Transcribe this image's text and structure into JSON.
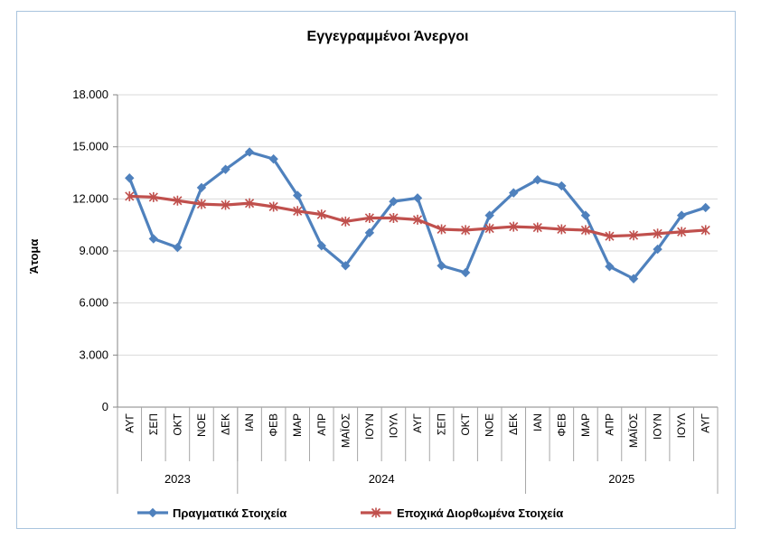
{
  "chart_data": {
    "type": "line",
    "title": "Εγγεγραμμένοι Άνεργοι",
    "xlabel": "",
    "ylabel": "Άτομα",
    "ylim": [
      0,
      18000
    ],
    "yticks": [
      0,
      3000,
      6000,
      9000,
      12000,
      15000,
      18000
    ],
    "ytick_labels": [
      "0",
      "3.000",
      "6.000",
      "9.000",
      "12.000",
      "15.000",
      "18.000"
    ],
    "grid": true,
    "legend_position": "bottom",
    "categories": [
      "ΑΥΓ",
      "ΣΕΠ",
      "ΟΚΤ",
      "ΝΟΕ",
      "ΔΕΚ",
      "ΙΑΝ",
      "ΦΕΒ",
      "ΜΑΡ",
      "ΑΠΡ",
      "ΜΑΪΟΣ",
      "ΙΟΥΝ",
      "ΙΟΥΛ",
      "ΑΥΓ",
      "ΣΕΠ",
      "ΟΚΤ",
      "ΝΟΕ",
      "ΔΕΚ",
      "ΙΑΝ",
      "ΦΕΒ",
      "ΜΑΡ",
      "ΑΠΡ",
      "ΜΑΪΟΣ",
      "ΙΟΥΝ",
      "ΙΟΥΛ",
      "ΑΥΓ"
    ],
    "year_groups": [
      {
        "label": "2023",
        "start": 0,
        "end": 4
      },
      {
        "label": "2024",
        "start": 5,
        "end": 16
      },
      {
        "label": "2025",
        "start": 17,
        "end": 24
      }
    ],
    "series": [
      {
        "name": "Πραγματικά Στοιχεία",
        "color": "#4f81bd",
        "marker": "diamond",
        "values": [
          13200,
          9700,
          9200,
          12650,
          13700,
          14700,
          14300,
          12200,
          9300,
          8150,
          10050,
          11850,
          12050,
          8150,
          7750,
          11050,
          12350,
          13100,
          12750,
          11050,
          8100,
          7400,
          9100,
          11050,
          11500
        ]
      },
      {
        "name": "Εποχικά Διορθωμένα Στοιχεία",
        "color": "#c0504d",
        "marker": "star",
        "values": [
          12150,
          12100,
          11900,
          11700,
          11650,
          11750,
          11550,
          11300,
          11100,
          10700,
          10900,
          10900,
          10800,
          10250,
          10200,
          10300,
          10400,
          10350,
          10250,
          10200,
          9850,
          9900,
          10000,
          10100,
          10200
        ]
      }
    ]
  }
}
